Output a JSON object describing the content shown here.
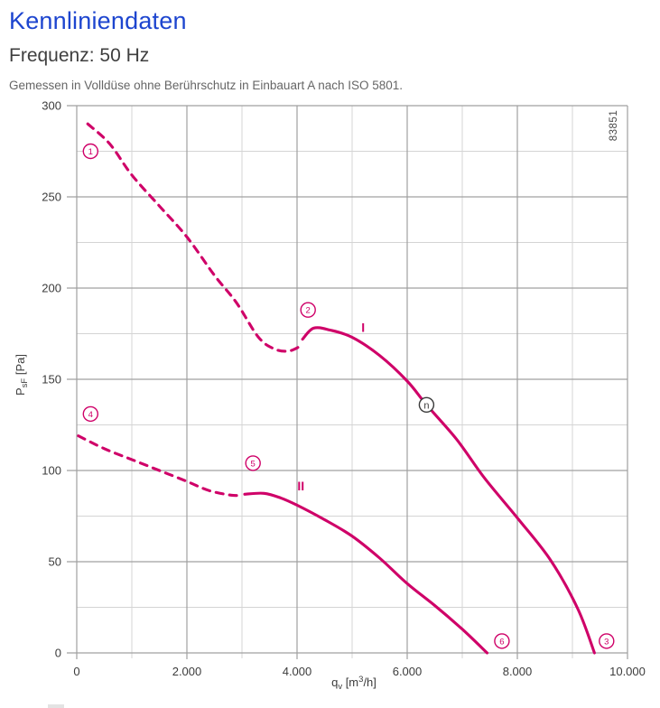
{
  "page": {
    "title": "Kennliniendaten",
    "subtitle": "Frequenz: 50 Hz",
    "description": "Gemessen in Volldüse ohne Berührschutz in Einbauart A nach ISO 5801.",
    "watermark": "83851"
  },
  "colors": {
    "title_blue": "#1d45cf",
    "subtitle_gray": "#3f3f3f",
    "desc_gray": "#666666",
    "curve_magenta": "#cf0068",
    "grid_major": "#a0a0a0",
    "grid_minor": "#d4d4d4",
    "axis_text": "#3c3c3c",
    "dark_marker": "#3a3a3a",
    "watermark_gray": "#4a4a4a"
  },
  "chart_data": {
    "type": "line",
    "title": "",
    "xlabel": "qv [m3/h]",
    "ylabel": "PsF [Pa]",
    "x_axis_label_parts": {
      "base": "q",
      "sub": "v",
      "unit_pre": " [m",
      "sup": "3",
      "unit_post": "/h]"
    },
    "y_axis_label_parts": {
      "base": "P",
      "sub": "sF",
      "unit": " [Pa]"
    },
    "xlim": [
      0,
      10000
    ],
    "ylim": [
      0,
      300
    ],
    "x_major_ticks": [
      0,
      2000,
      4000,
      6000,
      8000,
      10000
    ],
    "x_tick_labels": [
      "0",
      "2.000",
      "4.000",
      "6.000",
      "8.000",
      "10.000"
    ],
    "x_minor_step": 1000,
    "y_major_ticks": [
      0,
      50,
      100,
      150,
      200,
      250,
      300
    ],
    "y_tick_labels": [
      "0",
      "50",
      "100",
      "150",
      "200",
      "250",
      "300"
    ],
    "y_minor_step": 25,
    "grid": true,
    "legend_position": "none",
    "series": [
      {
        "name": "I",
        "style": "dashed",
        "points": [
          [
            200,
            290
          ],
          [
            600,
            279
          ],
          [
            1000,
            262
          ],
          [
            1500,
            245
          ],
          [
            2000,
            228
          ],
          [
            2500,
            207
          ],
          [
            2900,
            192
          ],
          [
            3300,
            173
          ],
          [
            3600,
            166.5
          ],
          [
            3850,
            165.5
          ],
          [
            4050,
            168
          ]
        ]
      },
      {
        "name": "I",
        "style": "solid",
        "points": [
          [
            4100,
            172
          ],
          [
            4300,
            178
          ],
          [
            4600,
            177
          ],
          [
            5000,
            173
          ],
          [
            5500,
            163
          ],
          [
            6000,
            149
          ],
          [
            6350,
            136
          ],
          [
            6900,
            117
          ],
          [
            7400,
            96
          ],
          [
            8000,
            74
          ],
          [
            8600,
            51
          ],
          [
            9100,
            24
          ],
          [
            9400,
            0
          ]
        ]
      },
      {
        "name": "II",
        "style": "dashed",
        "points": [
          [
            30,
            119
          ],
          [
            500,
            112
          ],
          [
            1000,
            106
          ],
          [
            1500,
            100
          ],
          [
            2000,
            94
          ],
          [
            2400,
            89
          ],
          [
            2800,
            86.5
          ],
          [
            3000,
            86.5
          ]
        ]
      },
      {
        "name": "II",
        "style": "solid",
        "points": [
          [
            3050,
            87
          ],
          [
            3400,
            87.5
          ],
          [
            3700,
            85
          ],
          [
            4000,
            81
          ],
          [
            4500,
            73
          ],
          [
            5000,
            64
          ],
          [
            5500,
            52
          ],
          [
            6000,
            38
          ],
          [
            6500,
            26
          ],
          [
            7000,
            13
          ],
          [
            7450,
            0
          ]
        ]
      }
    ],
    "curve_labels": [
      {
        "text": "I",
        "x": 5200,
        "y": 176
      },
      {
        "text": "II",
        "x": 4070,
        "y": 89
      }
    ],
    "point_markers": [
      {
        "label": "1",
        "x": 250,
        "y": 275,
        "color": "curve"
      },
      {
        "label": "2",
        "x": 4200,
        "y": 188,
        "color": "curve"
      },
      {
        "label": "3",
        "x": 9620,
        "y": 6.5,
        "color": "curve"
      },
      {
        "label": "4",
        "x": 250,
        "y": 131,
        "color": "curve"
      },
      {
        "label": "5",
        "x": 3200,
        "y": 104,
        "color": "curve"
      },
      {
        "label": "6",
        "x": 7720,
        "y": 6.5,
        "color": "curve"
      },
      {
        "label": "n",
        "x": 6350,
        "y": 136,
        "color": "dark"
      }
    ]
  }
}
